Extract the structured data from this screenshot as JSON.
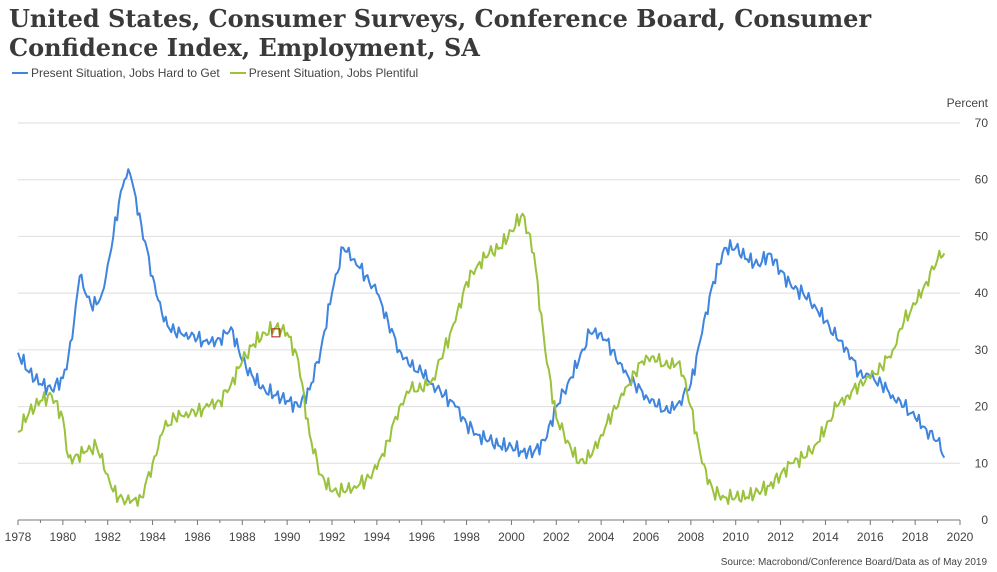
{
  "chart_data": {
    "type": "line",
    "title": "United States, Consumer Surveys, Conference Board, Consumer Confidence Index, Employment, SA",
    "ylabel": "Percent",
    "xlabel": "",
    "ylim": [
      0,
      70
    ],
    "xlim": [
      1978,
      2020
    ],
    "yticks": [
      0,
      10,
      20,
      30,
      40,
      50,
      60,
      70
    ],
    "xticks": [
      1978,
      1980,
      1982,
      1984,
      1986,
      1988,
      1990,
      1992,
      1994,
      1996,
      1998,
      2000,
      2002,
      2004,
      2006,
      2008,
      2010,
      2012,
      2014,
      2016,
      2018,
      2020
    ],
    "grid": "horizontal",
    "legend_position": "top-left",
    "source": "Source: Macrobond/Conference Board/Data as of May 2019",
    "marker_annotation": {
      "x": 1989.5,
      "y": 33
    },
    "series": [
      {
        "name": "Present Situation, Jobs Hard to Get",
        "color": "#3f84dd",
        "x": [
          1978.0,
          1978.5,
          1979.0,
          1979.5,
          1980.0,
          1980.25,
          1980.5,
          1980.75,
          1981.0,
          1981.25,
          1981.5,
          1981.75,
          1982.0,
          1982.25,
          1982.5,
          1982.75,
          1983.0,
          1983.5,
          1984.0,
          1984.5,
          1985.0,
          1985.5,
          1986.0,
          1986.5,
          1987.0,
          1987.25,
          1987.5,
          1988.0,
          1988.5,
          1989.0,
          1989.5,
          1990.0,
          1990.5,
          1991.0,
          1991.5,
          1992.0,
          1992.5,
          1993.0,
          1993.5,
          1994.0,
          1994.5,
          1995.0,
          1995.5,
          1996.0,
          1996.5,
          1997.0,
          1997.5,
          1998.0,
          1998.5,
          1999.0,
          1999.5,
          2000.0,
          2000.5,
          2001.0,
          2001.5,
          2002.0,
          2002.5,
          2003.0,
          2003.5,
          2004.0,
          2004.5,
          2005.0,
          2005.5,
          2006.0,
          2006.5,
          2007.0,
          2007.5,
          2008.0,
          2008.5,
          2009.0,
          2009.5,
          2010.0,
          2010.5,
          2011.0,
          2011.5,
          2012.0,
          2012.5,
          2013.0,
          2013.5,
          2014.0,
          2014.5,
          2015.0,
          2015.5,
          2016.0,
          2016.5,
          2017.0,
          2017.5,
          2018.0,
          2018.5,
          2019.0,
          2019.3
        ],
        "values": [
          29.5,
          26,
          24,
          23,
          25,
          29,
          35,
          43,
          40,
          38,
          38,
          40,
          45,
          50,
          56,
          60,
          61,
          52,
          43,
          35,
          33,
          33,
          32,
          31,
          32,
          33,
          34,
          28,
          25,
          23,
          22,
          21,
          20,
          23,
          30,
          40,
          48,
          46,
          43,
          40,
          35,
          30,
          27,
          26,
          24,
          22,
          20,
          17,
          15,
          14,
          13,
          13,
          12,
          12,
          14,
          20,
          24,
          28,
          33,
          33,
          30,
          26,
          24,
          22,
          20,
          19,
          21,
          24,
          33,
          42,
          48,
          48,
          46,
          45,
          47,
          44,
          41,
          40,
          38,
          35,
          32,
          30,
          26,
          25,
          24,
          22,
          20,
          18,
          16,
          14,
          11
        ]
      },
      {
        "name": "Present Situation, Jobs Plentiful",
        "color": "#9ac23c",
        "x": [
          1978.0,
          1978.5,
          1979.0,
          1979.5,
          1980.0,
          1980.25,
          1980.5,
          1981.0,
          1981.5,
          1982.0,
          1982.25,
          1982.5,
          1983.0,
          1983.5,
          1984.0,
          1984.5,
          1985.0,
          1985.5,
          1986.0,
          1986.5,
          1987.0,
          1987.5,
          1988.0,
          1988.5,
          1989.0,
          1989.5,
          1990.0,
          1990.5,
          1991.0,
          1991.5,
          1992.0,
          1992.5,
          1993.0,
          1993.5,
          1994.0,
          1994.5,
          1995.0,
          1995.5,
          1996.0,
          1996.5,
          1997.0,
          1997.5,
          1998.0,
          1998.5,
          1999.0,
          1999.5,
          2000.0,
          2000.5,
          2001.0,
          2001.5,
          2002.0,
          2002.5,
          2003.0,
          2003.5,
          2004.0,
          2004.5,
          2005.0,
          2005.5,
          2006.0,
          2006.5,
          2007.0,
          2007.5,
          2008.0,
          2008.5,
          2009.0,
          2009.5,
          2010.0,
          2010.5,
          2011.0,
          2011.5,
          2012.0,
          2012.5,
          2013.0,
          2013.5,
          2014.0,
          2014.5,
          2015.0,
          2015.5,
          2016.0,
          2016.5,
          2017.0,
          2017.5,
          2018.0,
          2018.5,
          2019.0,
          2019.3
        ],
        "values": [
          15.5,
          19,
          21,
          22,
          18,
          11,
          11,
          12,
          13,
          8,
          5,
          4,
          3,
          4,
          10,
          16,
          18,
          19,
          19,
          20,
          21,
          24,
          28,
          31,
          33,
          34,
          33,
          28,
          15,
          8,
          5,
          5,
          6,
          7,
          9,
          14,
          20,
          23,
          23,
          25,
          30,
          35,
          42,
          45,
          47,
          48,
          51,
          54,
          47,
          30,
          18,
          14,
          10,
          11,
          15,
          19,
          22,
          26,
          29,
          28,
          27,
          28,
          20,
          10,
          5,
          4,
          4,
          4,
          5,
          6,
          8,
          10,
          11,
          13,
          16,
          20,
          22,
          24,
          25,
          27,
          30,
          35,
          38,
          42,
          46,
          47
        ]
      }
    ]
  }
}
